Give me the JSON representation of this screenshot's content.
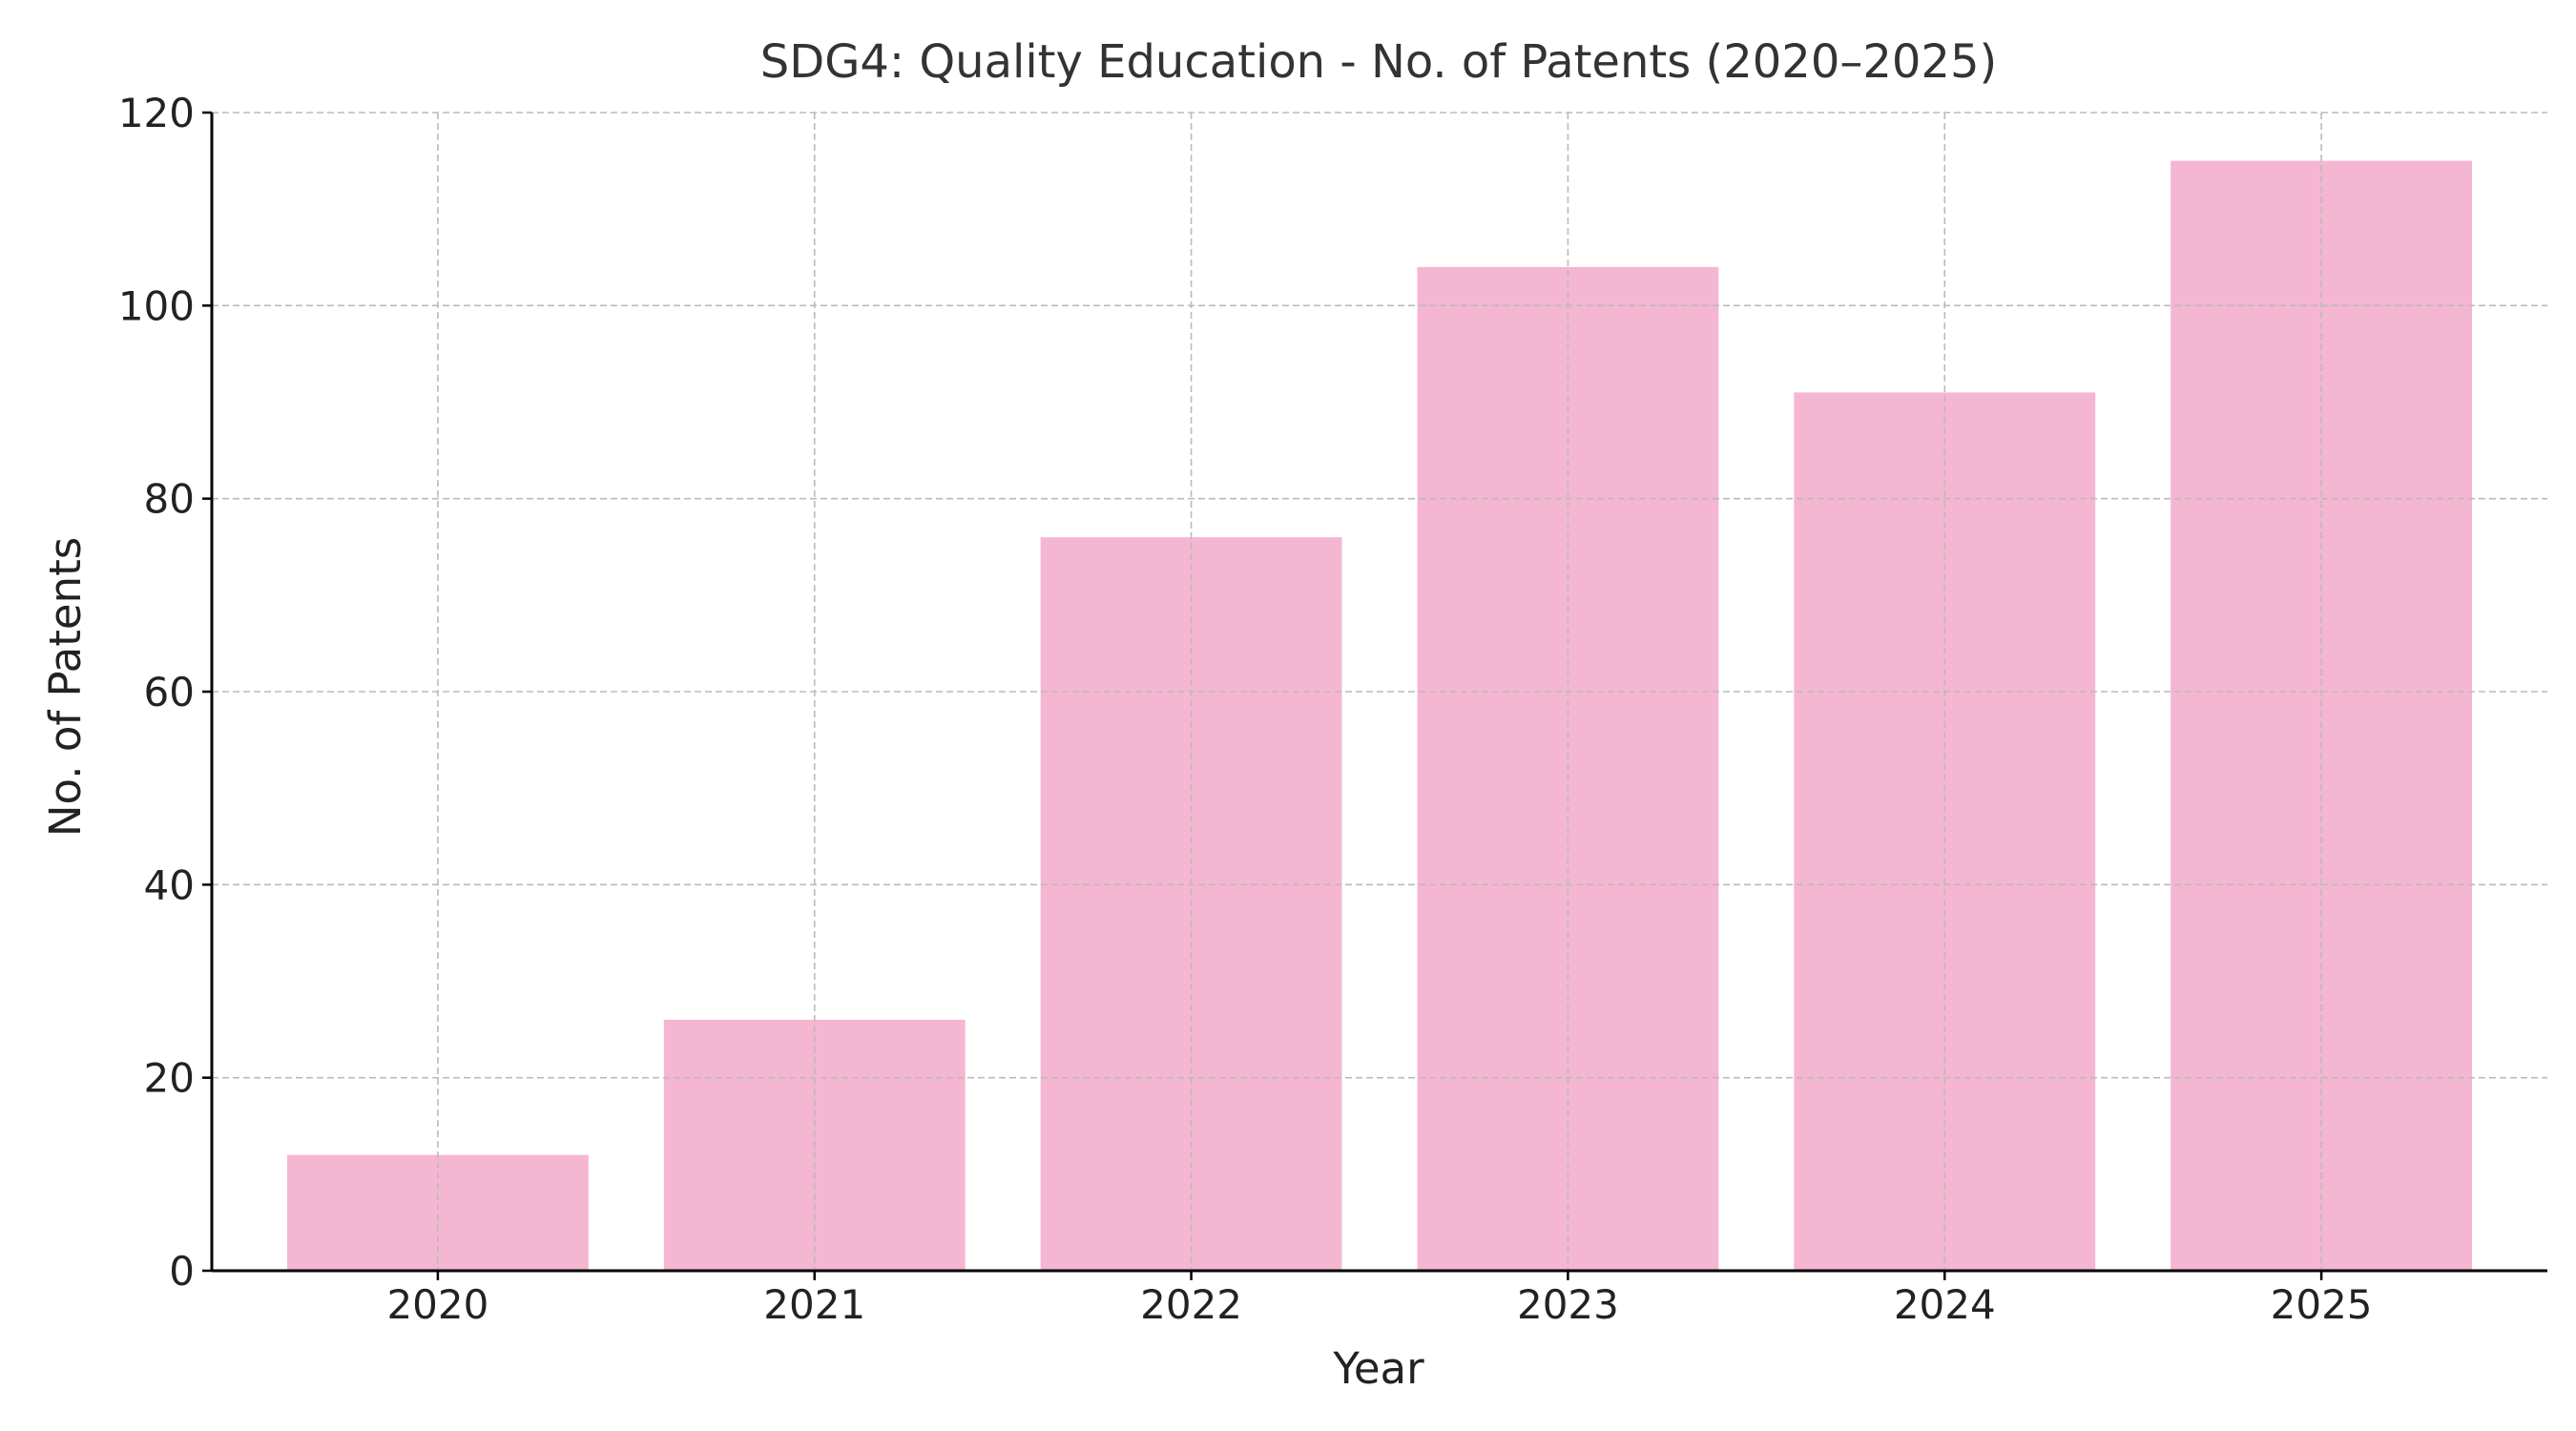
{
  "chart_data": {
    "type": "bar",
    "title": "SDG4: Quality Education - No. of Patents (2020–2025)",
    "xlabel": "Year",
    "ylabel": "No. of Patents",
    "categories": [
      "2020",
      "2021",
      "2022",
      "2023",
      "2024",
      "2025"
    ],
    "values": [
      12,
      26,
      76,
      104,
      91,
      115
    ],
    "ylim": [
      0,
      120
    ],
    "yticks": [
      0,
      20,
      40,
      60,
      80,
      100,
      120
    ],
    "grid": true,
    "bar_color": "#f5b6d1",
    "grid_color": "#bbbbbb",
    "axis_color": "#000000"
  }
}
